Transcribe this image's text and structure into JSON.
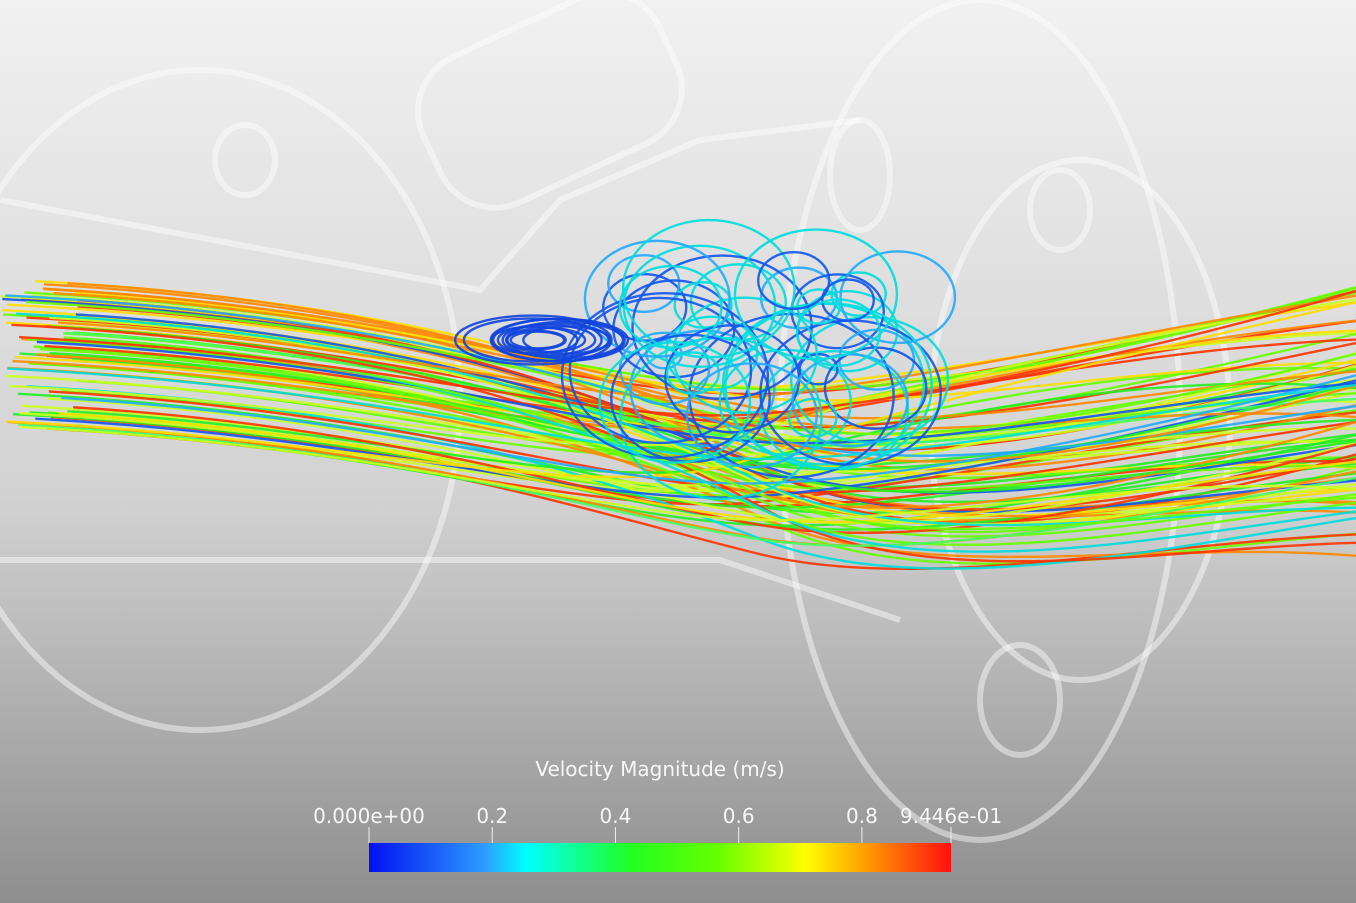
{
  "colorbar": {
    "title": "Velocity Magnitude (m/s)",
    "range": [
      0,
      0.9446
    ],
    "ticks": [
      {
        "value": 0,
        "label": "0.000e+00"
      },
      0.2,
      0.4,
      0.6,
      0.8,
      {
        "value": 0.9446,
        "label": "9.446e-01"
      }
    ]
  }
}
